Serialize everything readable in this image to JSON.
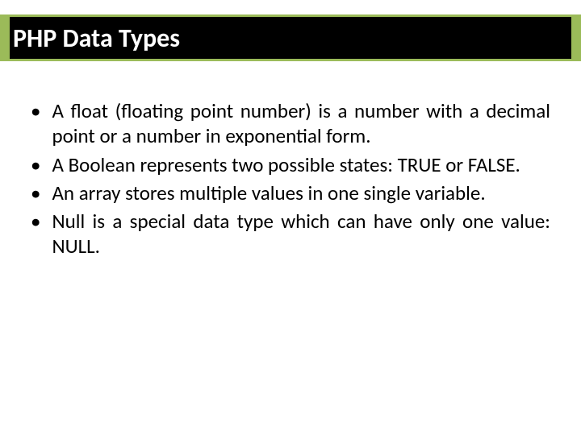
{
  "slide": {
    "title": "PHP Data Types",
    "header_bg_color": "#9bbb59",
    "header_inner_bg_color": "#000000",
    "title_color": "#ffffff",
    "title_fontsize": 32,
    "body_bg_color": "#ffffff",
    "text_color": "#000000",
    "body_fontsize": 25,
    "bullets": [
      "A float (floating point number) is a number with a decimal point or a number in exponential form.",
      "A Boolean represents two possible states: TRUE or FALSE.",
      "An array stores multiple values in one single variable.",
      "Null is a special data type which can have only one value: NULL."
    ]
  }
}
